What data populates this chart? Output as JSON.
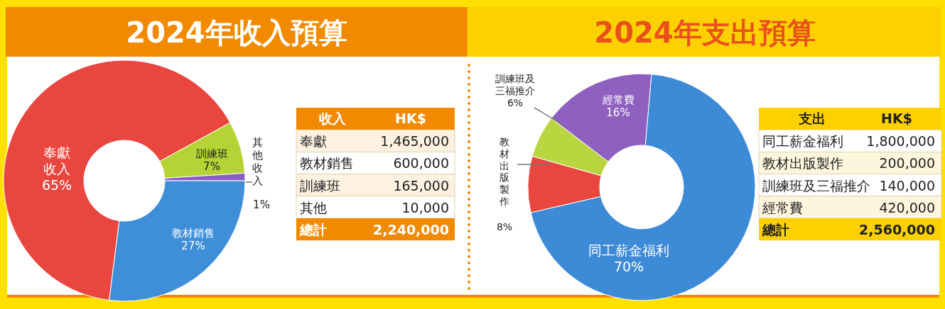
{
  "chart_data": [
    {
      "type": "donut",
      "title": "2024年收入預算",
      "categories": [
        "奉獻收入",
        "訓練班",
        "其他收入",
        "教材銷售"
      ],
      "values": [
        65,
        7,
        1,
        27
      ],
      "colors": [
        "#e8463f",
        "#b5d334",
        "#8b5cc4",
        "#3f8fd8"
      ],
      "value_labels": [
        "65%",
        "7%",
        "1%",
        "27%"
      ]
    },
    {
      "type": "other",
      "annotations": [
        "收入",
        "HK$",
        "總計"
      ],
      "categories": [
        "奉獻",
        "教材銷售",
        "訓練班",
        "其他"
      ],
      "values": [
        1465000,
        600000,
        165000,
        10000
      ],
      "value_labels": [
        "1,465,000",
        "600,000",
        "165,000",
        "10,000"
      ],
      "totals": [
        "2,240,000"
      ]
    },
    {
      "type": "donut",
      "title": "2024年支出預算",
      "categories": [
        "同工薪金福利",
        "教材出版製作",
        "訓練班及三福推介",
        "經常費"
      ],
      "values": [
        70,
        8,
        6,
        16
      ],
      "colors": [
        "#3d8ad6",
        "#e8463f",
        "#b9d641",
        "#8e60c0"
      ],
      "value_labels": [
        "70%",
        "8%",
        "6%",
        "16%"
      ]
    },
    {
      "type": "other",
      "annotations": [
        "支出",
        "HK$",
        "總計"
      ],
      "categories": [
        "同工薪金福利",
        "教材出版製作",
        "訓練班及三福推介",
        "經常費"
      ],
      "values": [
        1800000,
        200000,
        140000,
        420000
      ],
      "value_labels": [
        "1,800,000",
        "200,000",
        "140,000",
        "420,000"
      ],
      "totals": [
        "2,560,000"
      ]
    }
  ]
}
